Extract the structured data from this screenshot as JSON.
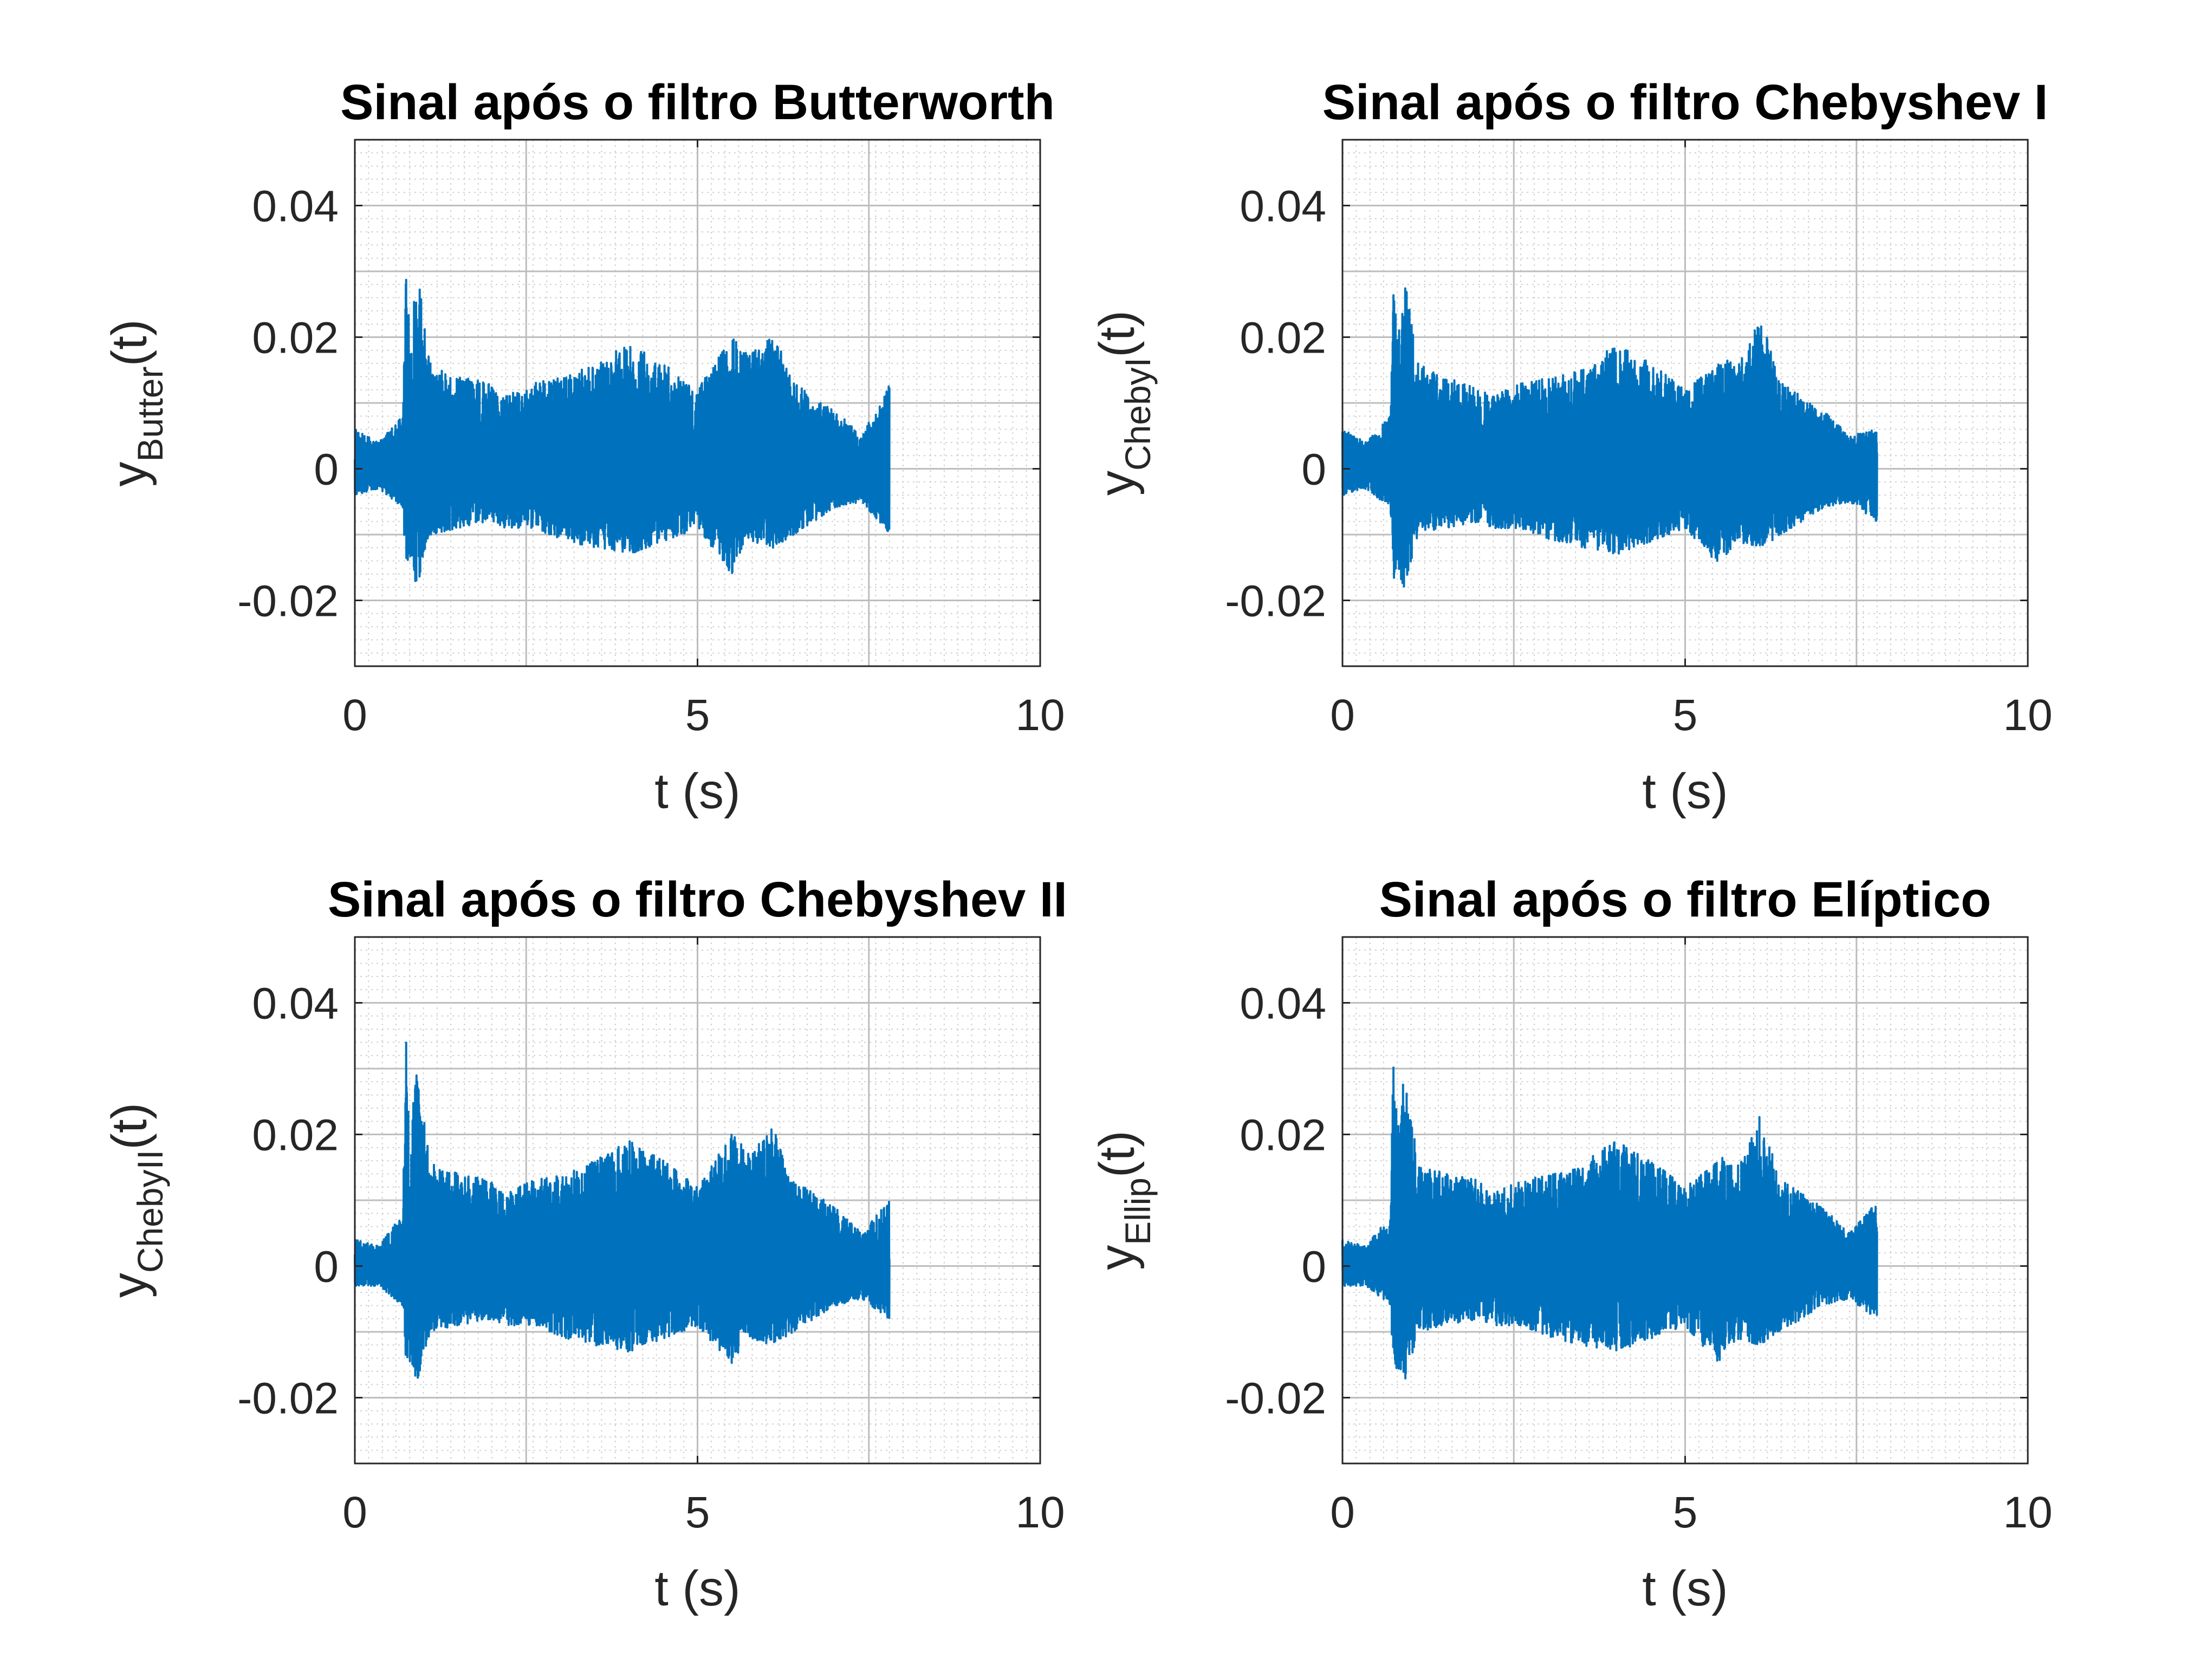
{
  "figure": {
    "background": "#ffffff",
    "line_color": "#0072BD",
    "grid": "major+minor"
  },
  "chart_data": [
    {
      "type": "line",
      "title": "Sinal após o filtro Butterworth",
      "xlabel": "t (s)",
      "ylabel": {
        "base": "y",
        "sub": "Butter",
        "suffix": "(t)"
      },
      "xlim": [
        0,
        10
      ],
      "ylim": [
        -0.03,
        0.05
      ],
      "xticks": [
        0,
        5,
        10
      ],
      "xtick_labels": [
        "0",
        "5",
        "10"
      ],
      "yticks": [
        -0.02,
        0,
        0.02,
        0.04
      ],
      "ytick_labels": [
        "-0.02",
        "0",
        "0.02",
        "0.04"
      ],
      "grid": true,
      "minor_grid": true,
      "signal_end": 7.8,
      "series": [
        {
          "color": "#0072BD",
          "envelope": {
            "t": [
              0,
              0.35,
              0.7,
              0.75,
              0.8,
              0.9,
              0.95,
              1.1,
              1.5,
              2.0,
              2.2,
              2.6,
              3.1,
              3.5,
              4.0,
              4.5,
              5.0,
              5.5,
              5.6,
              5.75,
              6.1,
              6.4,
              7.0,
              7.4,
              7.8
            ],
            "max": [
              0.006,
              0.004,
              0.008,
              0.034,
              0.02,
              0.03,
              0.027,
              0.016,
              0.014,
              0.013,
              0.011,
              0.013,
              0.014,
              0.016,
              0.019,
              0.016,
              0.012,
              0.02,
              0.019,
              0.017,
              0.021,
              0.013,
              0.009,
              0.005,
              0.013
            ],
            "min": [
              -0.004,
              -0.003,
              -0.006,
              -0.016,
              -0.014,
              -0.019,
              -0.016,
              -0.01,
              -0.009,
              -0.008,
              -0.009,
              -0.009,
              -0.011,
              -0.012,
              -0.013,
              -0.011,
              -0.009,
              -0.016,
              -0.013,
              -0.011,
              -0.012,
              -0.01,
              -0.006,
              -0.005,
              -0.01
            ]
          }
        }
      ]
    },
    {
      "type": "line",
      "title": "Sinal após o filtro Chebyshev I",
      "xlabel": "t (s)",
      "ylabel": {
        "base": "y",
        "sub": "ChebyI",
        "suffix": "(t)"
      },
      "xlim": [
        0,
        10
      ],
      "ylim": [
        -0.03,
        0.05
      ],
      "xticks": [
        0,
        5,
        10
      ],
      "xtick_labels": [
        "0",
        "5",
        "10"
      ],
      "yticks": [
        -0.02,
        0,
        0.02,
        0.04
      ],
      "ytick_labels": [
        "-0.02",
        "0",
        "0.02",
        "0.04"
      ],
      "grid": true,
      "minor_grid": true,
      "signal_end": 7.8,
      "series": [
        {
          "color": "#0072BD",
          "envelope": {
            "t": [
              0,
              0.35,
              0.7,
              0.75,
              0.8,
              0.9,
              0.95,
              1.1,
              1.5,
              2.0,
              2.2,
              2.6,
              3.1,
              3.5,
              4.0,
              4.5,
              5.0,
              5.5,
              5.6,
              5.75,
              6.1,
              6.4,
              7.0,
              7.4,
              7.8
            ],
            "max": [
              0.006,
              0.004,
              0.008,
              0.033,
              0.02,
              0.029,
              0.026,
              0.016,
              0.014,
              0.012,
              0.011,
              0.013,
              0.014,
              0.015,
              0.019,
              0.016,
              0.012,
              0.016,
              0.017,
              0.015,
              0.023,
              0.013,
              0.009,
              0.005,
              0.006
            ],
            "min": [
              -0.004,
              -0.003,
              -0.006,
              -0.017,
              -0.014,
              -0.019,
              -0.016,
              -0.01,
              -0.009,
              -0.008,
              -0.009,
              -0.009,
              -0.011,
              -0.012,
              -0.013,
              -0.011,
              -0.009,
              -0.015,
              -0.013,
              -0.011,
              -0.012,
              -0.01,
              -0.006,
              -0.005,
              -0.008
            ]
          }
        }
      ]
    },
    {
      "type": "line",
      "title": "Sinal após o filtro Chebyshev II",
      "xlabel": "t (s)",
      "ylabel": {
        "base": "y",
        "sub": "ChebyII",
        "suffix": "(t)"
      },
      "xlim": [
        0,
        10
      ],
      "ylim": [
        -0.03,
        0.05
      ],
      "xticks": [
        0,
        5,
        10
      ],
      "xtick_labels": [
        "0",
        "5",
        "10"
      ],
      "yticks": [
        -0.02,
        0,
        0.02,
        0.04
      ],
      "ytick_labels": [
        "-0.02",
        "0",
        "0.02",
        "0.04"
      ],
      "grid": true,
      "minor_grid": true,
      "signal_end": 7.8,
      "series": [
        {
          "color": "#0072BD",
          "envelope": {
            "t": [
              0,
              0.35,
              0.7,
              0.75,
              0.8,
              0.9,
              0.95,
              1.1,
              1.5,
              2.0,
              2.2,
              2.6,
              3.1,
              3.5,
              4.0,
              4.5,
              5.0,
              5.5,
              5.6,
              5.75,
              6.1,
              6.4,
              7.0,
              7.4,
              7.8
            ],
            "max": [
              0.004,
              0.003,
              0.008,
              0.035,
              0.02,
              0.029,
              0.026,
              0.016,
              0.014,
              0.013,
              0.011,
              0.013,
              0.014,
              0.016,
              0.019,
              0.016,
              0.012,
              0.02,
              0.019,
              0.017,
              0.021,
              0.013,
              0.009,
              0.005,
              0.01
            ],
            "min": [
              -0.003,
              -0.003,
              -0.006,
              -0.017,
              -0.015,
              -0.018,
              -0.016,
              -0.01,
              -0.009,
              -0.008,
              -0.009,
              -0.009,
              -0.011,
              -0.012,
              -0.013,
              -0.011,
              -0.009,
              -0.015,
              -0.013,
              -0.011,
              -0.012,
              -0.01,
              -0.006,
              -0.005,
              -0.008
            ]
          }
        }
      ]
    },
    {
      "type": "line",
      "title": "Sinal após o filtro Elíptico",
      "xlabel": "t (s)",
      "ylabel": {
        "base": "y",
        "sub": "Ellip",
        "suffix": "(t)"
      },
      "xlim": [
        0,
        10
      ],
      "ylim": [
        -0.03,
        0.05
      ],
      "xticks": [
        0,
        5,
        10
      ],
      "xtick_labels": [
        "0",
        "5",
        "10"
      ],
      "yticks": [
        -0.02,
        0,
        0.02,
        0.04
      ],
      "ytick_labels": [
        "-0.02",
        "0",
        "0.02",
        "0.04"
      ],
      "grid": true,
      "minor_grid": true,
      "signal_end": 7.8,
      "series": [
        {
          "color": "#0072BD",
          "envelope": {
            "t": [
              0,
              0.35,
              0.7,
              0.75,
              0.8,
              0.9,
              0.95,
              1.1,
              1.5,
              2.0,
              2.2,
              2.6,
              3.1,
              3.5,
              4.0,
              4.5,
              5.0,
              5.5,
              5.6,
              5.75,
              6.1,
              6.4,
              7.0,
              7.4,
              7.8
            ],
            "max": [
              0.004,
              0.003,
              0.008,
              0.035,
              0.02,
              0.029,
              0.026,
              0.016,
              0.014,
              0.013,
              0.011,
              0.013,
              0.014,
              0.016,
              0.019,
              0.016,
              0.012,
              0.016,
              0.017,
              0.015,
              0.023,
              0.013,
              0.009,
              0.005,
              0.01
            ],
            "min": [
              -0.003,
              -0.003,
              -0.006,
              -0.017,
              -0.015,
              -0.018,
              -0.016,
              -0.01,
              -0.009,
              -0.008,
              -0.009,
              -0.009,
              -0.011,
              -0.012,
              -0.013,
              -0.011,
              -0.009,
              -0.015,
              -0.013,
              -0.011,
              -0.012,
              -0.01,
              -0.006,
              -0.005,
              -0.008
            ]
          }
        }
      ]
    }
  ]
}
